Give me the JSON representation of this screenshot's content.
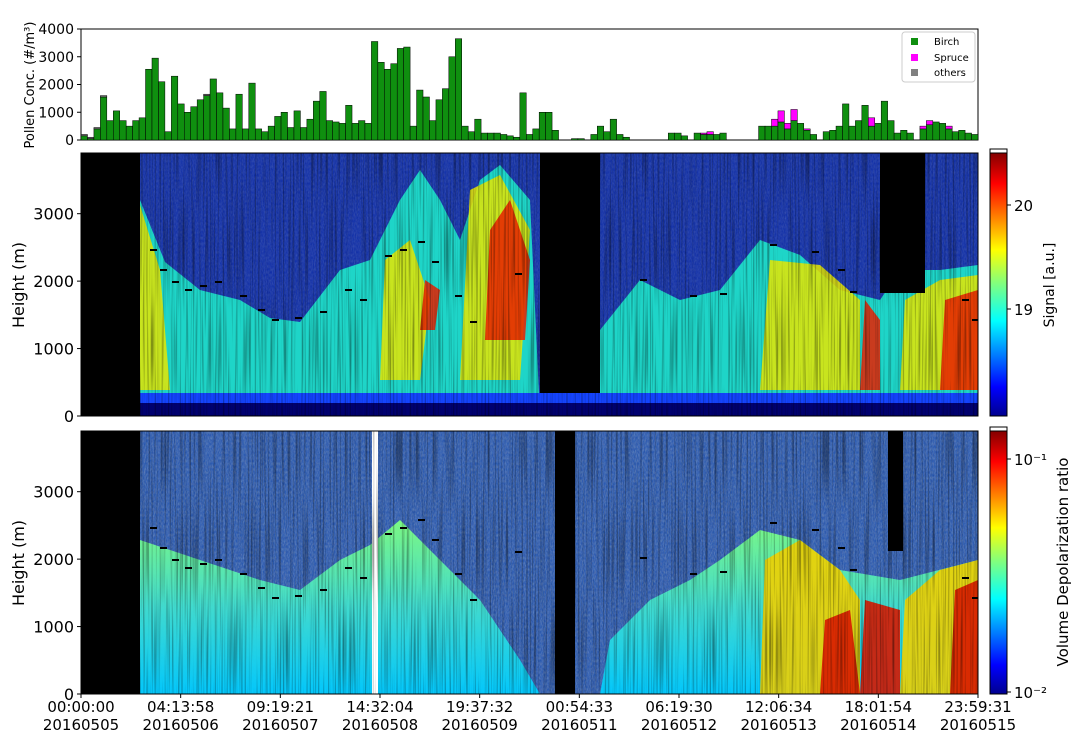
{
  "colors": {
    "birch": "#0f8f0f",
    "spruce": "#ff00ff",
    "others": "#808080",
    "frame": "#000000",
    "background_black": "#000000"
  },
  "chart_data": [
    {
      "type": "bar",
      "ylabel": "Pollen Conc. (#/m³)",
      "ylim": [
        0,
        4000
      ],
      "yticks": [
        "0",
        "1000",
        "2000",
        "3000",
        "4000"
      ],
      "legend": [
        "Birch",
        "Spruce",
        "others"
      ],
      "legend_position": "top-right",
      "series": [
        {
          "name": "Birch",
          "values": [
            150,
            50,
            400,
            1550,
            700,
            1050,
            700,
            500,
            700,
            800,
            2550,
            2950,
            2100,
            300,
            2300,
            1300,
            1000,
            1200,
            1450,
            1600,
            2200,
            1700,
            1150,
            400,
            1650,
            400,
            2050,
            400,
            300,
            500,
            850,
            1000,
            450,
            1050,
            450,
            750,
            1400,
            1750,
            700,
            650,
            600,
            1250,
            600,
            700,
            600,
            3550,
            2800,
            2550,
            2750,
            3300,
            3350,
            500,
            1800,
            1550,
            700,
            1450,
            1850,
            3000,
            3650,
            500,
            300,
            750,
            250,
            250,
            250,
            200,
            150,
            100,
            1700,
            200,
            400,
            1000,
            1000,
            350,
            0,
            0,
            50,
            50,
            0,
            200,
            500,
            300,
            750,
            200,
            100,
            0,
            0,
            0,
            0,
            0,
            0,
            250,
            250,
            150,
            0,
            250,
            200,
            200,
            200,
            250,
            0,
            0,
            0,
            0,
            0,
            500,
            500,
            500,
            650,
            400,
            700,
            600,
            350,
            200,
            0,
            300,
            350,
            500,
            1300,
            500,
            700,
            1250,
            500,
            600,
            1400,
            700,
            250,
            350,
            250,
            0,
            400,
            550,
            650,
            600,
            400,
            300,
            350,
            250,
            200
          ]
        },
        {
          "name": "Spruce",
          "values": [
            0,
            0,
            0,
            0,
            0,
            0,
            0,
            0,
            0,
            0,
            0,
            0,
            0,
            0,
            0,
            0,
            0,
            0,
            0,
            0,
            0,
            0,
            0,
            0,
            0,
            0,
            0,
            0,
            0,
            0,
            0,
            0,
            0,
            0,
            0,
            0,
            0,
            0,
            0,
            0,
            0,
            0,
            0,
            0,
            0,
            0,
            0,
            0,
            0,
            0,
            0,
            0,
            0,
            0,
            0,
            0,
            0,
            0,
            0,
            0,
            0,
            0,
            0,
            0,
            0,
            0,
            0,
            0,
            0,
            0,
            0,
            0,
            0,
            0,
            0,
            0,
            0,
            0,
            0,
            0,
            0,
            0,
            0,
            0,
            0,
            0,
            0,
            0,
            0,
            0,
            0,
            0,
            0,
            0,
            0,
            0,
            50,
            100,
            0,
            0,
            0,
            0,
            0,
            0,
            0,
            0,
            0,
            250,
            400,
            200,
            400,
            0,
            50,
            0,
            0,
            0,
            0,
            0,
            0,
            0,
            0,
            0,
            300,
            0,
            0,
            0,
            0,
            0,
            0,
            0,
            100,
            150,
            0,
            0,
            100,
            0,
            0
          ]
        },
        {
          "name": "others",
          "values": [
            50,
            50,
            50,
            50,
            0,
            0,
            0,
            0,
            0,
            0,
            0,
            0,
            0,
            0,
            0,
            0,
            0,
            0,
            0,
            50,
            0,
            0,
            0,
            0,
            0,
            0,
            0,
            0,
            0,
            0,
            0,
            0,
            0,
            0,
            0,
            0,
            0,
            0,
            0,
            0,
            0,
            0,
            0,
            0,
            0,
            0,
            0,
            0,
            0,
            0,
            0,
            0,
            0,
            0,
            0,
            0,
            0,
            0,
            0,
            0,
            0,
            0,
            0,
            0,
            0,
            0,
            0,
            0,
            0,
            0,
            0,
            0,
            0,
            0,
            0,
            0,
            0,
            0,
            0,
            0,
            0,
            0,
            0,
            0,
            0,
            0,
            0,
            0,
            0,
            0,
            0,
            0,
            0,
            0,
            0,
            0,
            0,
            0,
            0,
            0,
            0,
            0,
            0,
            0,
            0,
            0,
            0,
            0,
            0,
            0,
            0,
            0,
            0,
            0,
            0,
            0,
            0,
            0,
            0,
            0,
            0,
            0,
            0,
            0,
            0,
            0,
            0,
            0,
            0,
            0,
            0,
            0,
            0,
            0,
            0,
            0
          ]
        }
      ]
    },
    {
      "type": "heatmap",
      "ylabel": "Height (m)",
      "ylim": [
        0,
        3900
      ],
      "yticks": [
        "0",
        "1000",
        "2000",
        "3000"
      ],
      "colorbar_label": "Signal [a.u.]",
      "colorbar_ticks": [
        "19",
        "20"
      ],
      "colormap": "jet"
    },
    {
      "type": "heatmap",
      "ylabel": "Height (m)",
      "ylim": [
        0,
        3900
      ],
      "yticks": [
        "0",
        "1000",
        "2000",
        "3000"
      ],
      "colorbar_label": "Volume Depolarization ratio",
      "colorbar_ticks": [
        "10⁻¹",
        "10⁻²"
      ],
      "colorbar_scale": "log",
      "colormap": "jet",
      "xtick_times": [
        "00:00:00",
        "04:13:58",
        "09:19:21",
        "14:32:04",
        "19:37:32",
        "00:54:33",
        "06:19:30",
        "12:06:34",
        "18:01:54",
        "23:59:31"
      ],
      "xtick_dates": [
        "20160505",
        "20160506",
        "20160507",
        "20160508",
        "20160509",
        "20160511",
        "20160512",
        "20160513",
        "20160514",
        "20160515"
      ]
    }
  ]
}
